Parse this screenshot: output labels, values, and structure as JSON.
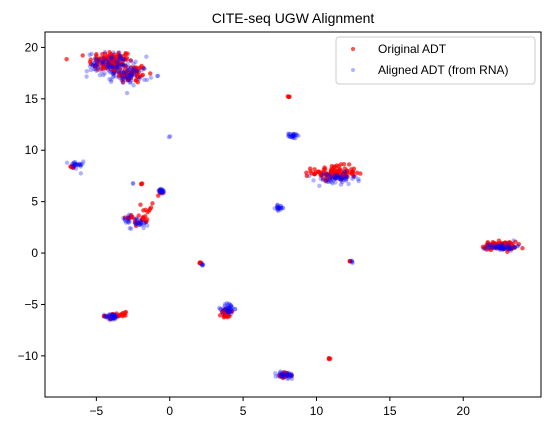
{
  "chart_data": {
    "type": "scatter",
    "title": "CITE-seq UGW Alignment",
    "xlabel": "",
    "ylabel": "",
    "xlim": [
      -8.5,
      25.3
    ],
    "ylim": [
      -14.0,
      21.5
    ],
    "xticks": [
      -5,
      0,
      5,
      10,
      15,
      20
    ],
    "yticks": [
      -10,
      -5,
      0,
      5,
      10,
      15,
      20
    ],
    "grid": false,
    "legend_position": "top-right",
    "series": [
      {
        "name": "Original ADT",
        "color": "#ff0000",
        "alpha": 0.7,
        "clusters": [
          {
            "cx": -4.0,
            "cy": 18.6,
            "sx": 0.75,
            "sy": 0.55,
            "n": 110
          },
          {
            "cx": -2.6,
            "cy": 17.4,
            "sx": 0.55,
            "sy": 0.45,
            "n": 55
          },
          {
            "cx": 8.1,
            "cy": 15.2,
            "sx": 0.04,
            "sy": 0.04,
            "n": 4
          },
          {
            "cx": -6.6,
            "cy": 8.4,
            "sx": 0.1,
            "sy": 0.08,
            "n": 6
          },
          {
            "cx": -1.9,
            "cy": 6.7,
            "sx": 0.05,
            "sy": 0.05,
            "n": 3
          },
          {
            "cx": -0.6,
            "cy": 6.0,
            "sx": 0.12,
            "sy": 0.1,
            "n": 6
          },
          {
            "cx": -1.5,
            "cy": 4.2,
            "sx": 0.2,
            "sy": 0.5,
            "n": 10
          },
          {
            "cx": -2.6,
            "cy": 3.4,
            "sx": 0.3,
            "sy": 0.2,
            "n": 10
          },
          {
            "cx": -1.9,
            "cy": 3.1,
            "sx": 0.25,
            "sy": 0.2,
            "n": 12
          },
          {
            "cx": 11.2,
            "cy": 7.8,
            "sx": 0.75,
            "sy": 0.35,
            "n": 100
          },
          {
            "cx": 2.1,
            "cy": -0.9,
            "sx": 0.05,
            "sy": 0.12,
            "n": 6
          },
          {
            "cx": 12.3,
            "cy": -0.8,
            "sx": 0.05,
            "sy": 0.05,
            "n": 3
          },
          {
            "cx": 22.5,
            "cy": 0.7,
            "sx": 0.55,
            "sy": 0.2,
            "n": 90
          },
          {
            "cx": -3.7,
            "cy": -6.1,
            "sx": 0.35,
            "sy": 0.12,
            "n": 25
          },
          {
            "cx": -3.2,
            "cy": -5.9,
            "sx": 0.1,
            "sy": 0.08,
            "n": 4
          },
          {
            "cx": 3.9,
            "cy": -5.9,
            "sx": 0.2,
            "sy": 0.22,
            "n": 30
          },
          {
            "cx": 7.8,
            "cy": -11.9,
            "sx": 0.3,
            "sy": 0.15,
            "n": 18
          },
          {
            "cx": 10.9,
            "cy": -10.3,
            "sx": 0.05,
            "sy": 0.05,
            "n": 4
          }
        ]
      },
      {
        "name": "Aligned ADT (from RNA)",
        "color": "#0000ff",
        "alpha": 0.3,
        "clusters": [
          {
            "cx": -4.0,
            "cy": 18.3,
            "sx": 0.8,
            "sy": 0.6,
            "n": 100
          },
          {
            "cx": -2.6,
            "cy": 17.3,
            "sx": 0.6,
            "sy": 0.45,
            "n": 50
          },
          {
            "cx": 8.4,
            "cy": 11.4,
            "sx": 0.15,
            "sy": 0.12,
            "n": 25
          },
          {
            "cx": 0.0,
            "cy": 11.3,
            "sx": 0.03,
            "sy": 0.03,
            "n": 2
          },
          {
            "cx": -6.4,
            "cy": 8.5,
            "sx": 0.25,
            "sy": 0.25,
            "n": 25
          },
          {
            "cx": -2.5,
            "cy": 6.8,
            "sx": 0.04,
            "sy": 0.04,
            "n": 2
          },
          {
            "cx": -0.6,
            "cy": 6.0,
            "sx": 0.15,
            "sy": 0.15,
            "n": 20
          },
          {
            "cx": -2.9,
            "cy": 3.3,
            "sx": 0.2,
            "sy": 0.2,
            "n": 12
          },
          {
            "cx": -2.1,
            "cy": 2.9,
            "sx": 0.3,
            "sy": 0.25,
            "n": 25
          },
          {
            "cx": 7.5,
            "cy": 4.4,
            "sx": 0.15,
            "sy": 0.12,
            "n": 20
          },
          {
            "cx": 11.3,
            "cy": 7.2,
            "sx": 0.7,
            "sy": 0.3,
            "n": 60
          },
          {
            "cx": 2.2,
            "cy": -1.1,
            "sx": 0.06,
            "sy": 0.1,
            "n": 5
          },
          {
            "cx": 12.4,
            "cy": -0.8,
            "sx": 0.06,
            "sy": 0.06,
            "n": 4
          },
          {
            "cx": 22.6,
            "cy": 0.6,
            "sx": 0.5,
            "sy": 0.18,
            "n": 60
          },
          {
            "cx": -3.9,
            "cy": -6.2,
            "sx": 0.25,
            "sy": 0.15,
            "n": 35
          },
          {
            "cx": 4.0,
            "cy": -5.4,
            "sx": 0.2,
            "sy": 0.3,
            "n": 40
          },
          {
            "cx": 7.9,
            "cy": -11.9,
            "sx": 0.3,
            "sy": 0.18,
            "n": 35
          }
        ]
      }
    ]
  }
}
